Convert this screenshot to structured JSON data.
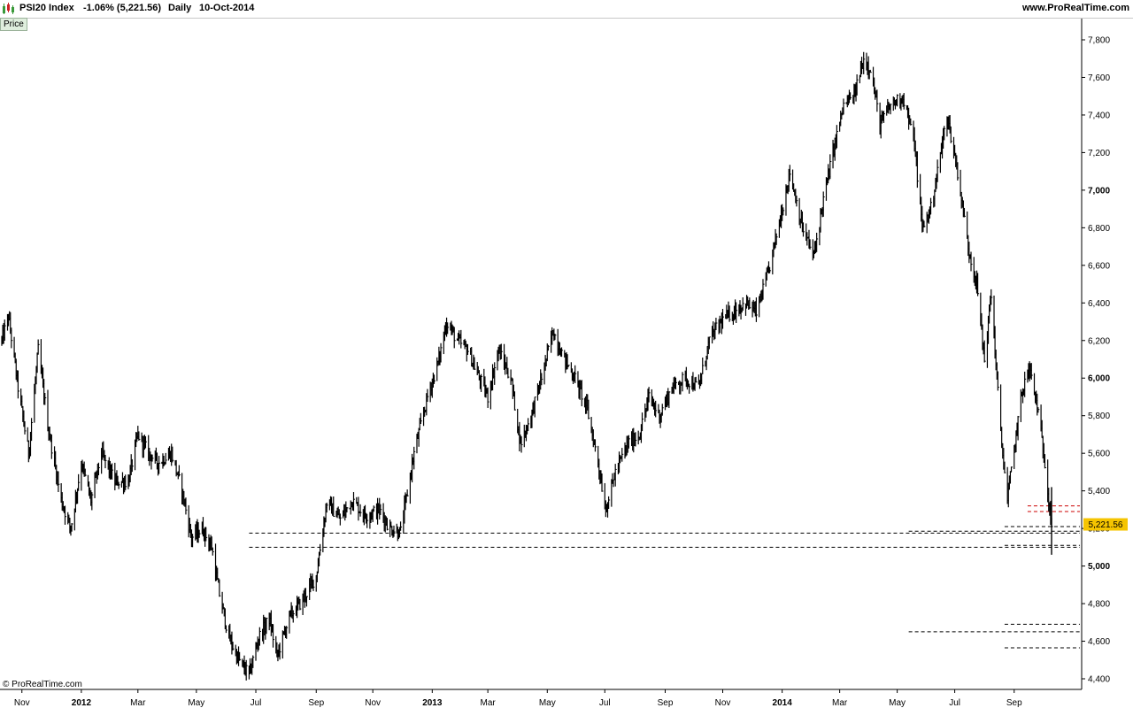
{
  "header": {
    "symbol": "PSI20 Index",
    "change": "-1.06% (5,221.56)",
    "period": "Daily",
    "date": "10-Oct-2014",
    "site": "www.ProRealTime.com"
  },
  "price_tab_label": "Price",
  "copyright": "© ProRealTime.com",
  "colors": {
    "bars": "#000000",
    "red_level": "#cc0000",
    "last_price_bg": "#f5c400",
    "tab_bg": "#dfeedd"
  },
  "chart_data": {
    "type": "ohlc",
    "title": "PSI20 Index",
    "xlabel": "",
    "ylabel": "",
    "ylim": [
      4350,
      7900
    ],
    "y_ticks": [
      {
        "value": 4400,
        "label": "4,400"
      },
      {
        "value": 4600,
        "label": "4,600"
      },
      {
        "value": 4800,
        "label": "4,800"
      },
      {
        "value": 5000,
        "label": "5,000"
      },
      {
        "value": 5200,
        "label": "5,200"
      },
      {
        "value": 5400,
        "label": "5,400"
      },
      {
        "value": 5600,
        "label": "5,600"
      },
      {
        "value": 5800,
        "label": "5,800"
      },
      {
        "value": 6000,
        "label": "6,000"
      },
      {
        "value": 6200,
        "label": "6,200"
      },
      {
        "value": 6400,
        "label": "6,400"
      },
      {
        "value": 6600,
        "label": "6,600"
      },
      {
        "value": 6800,
        "label": "6,800"
      },
      {
        "value": 7000,
        "label": "7,000"
      },
      {
        "value": 7200,
        "label": "7,200"
      },
      {
        "value": 7400,
        "label": "7,400"
      },
      {
        "value": 7600,
        "label": "7,600"
      },
      {
        "value": 7800,
        "label": "7,800"
      }
    ],
    "bold_y_ticks": [
      5000,
      6000,
      7000
    ],
    "x_range": [
      "2011-10-11",
      "2014-10-10"
    ],
    "x_ticks": [
      {
        "label": "Nov",
        "date": "2011-11-01",
        "bold": false
      },
      {
        "label": "2012",
        "date": "2012-01-02",
        "bold": true
      },
      {
        "label": "Mar",
        "date": "2012-03-01",
        "bold": false
      },
      {
        "label": "May",
        "date": "2012-05-01",
        "bold": false
      },
      {
        "label": "Jul",
        "date": "2012-07-02",
        "bold": false
      },
      {
        "label": "Sep",
        "date": "2012-09-03",
        "bold": false
      },
      {
        "label": "Nov",
        "date": "2012-11-01",
        "bold": false
      },
      {
        "label": "2013",
        "date": "2013-01-02",
        "bold": true
      },
      {
        "label": "Mar",
        "date": "2013-03-01",
        "bold": false
      },
      {
        "label": "May",
        "date": "2013-05-02",
        "bold": false
      },
      {
        "label": "Jul",
        "date": "2013-07-01",
        "bold": false
      },
      {
        "label": "Sep",
        "date": "2013-09-02",
        "bold": false
      },
      {
        "label": "Nov",
        "date": "2013-11-01",
        "bold": false
      },
      {
        "label": "2014",
        "date": "2014-01-02",
        "bold": true
      },
      {
        "label": "Mar",
        "date": "2014-03-03",
        "bold": false
      },
      {
        "label": "May",
        "date": "2014-05-02",
        "bold": false
      },
      {
        "label": "Jul",
        "date": "2014-07-01",
        "bold": false
      },
      {
        "label": "Sep",
        "date": "2014-09-01",
        "bold": false
      }
    ],
    "path": [
      [
        "2011-10-11",
        6200
      ],
      [
        "2011-10-18",
        6330
      ],
      [
        "2011-10-28",
        5950
      ],
      [
        "2011-11-08",
        5600
      ],
      [
        "2011-11-18",
        6150
      ],
      [
        "2011-11-28",
        5750
      ],
      [
        "2011-12-12",
        5350
      ],
      [
        "2011-12-22",
        5200
      ],
      [
        "2012-01-02",
        5550
      ],
      [
        "2012-01-12",
        5350
      ],
      [
        "2012-01-23",
        5600
      ],
      [
        "2012-02-06",
        5450
      ],
      [
        "2012-02-20",
        5450
      ],
      [
        "2012-03-01",
        5700
      ],
      [
        "2012-03-12",
        5600
      ],
      [
        "2012-03-22",
        5550
      ],
      [
        "2012-04-05",
        5600
      ],
      [
        "2012-04-16",
        5400
      ],
      [
        "2012-04-26",
        5150
      ],
      [
        "2012-05-07",
        5200
      ],
      [
        "2012-05-17",
        5100
      ],
      [
        "2012-05-25",
        4850
      ],
      [
        "2012-06-04",
        4620
      ],
      [
        "2012-06-14",
        4500
      ],
      [
        "2012-06-25",
        4420
      ],
      [
        "2012-07-05",
        4620
      ],
      [
        "2012-07-16",
        4720
      ],
      [
        "2012-07-24",
        4520
      ],
      [
        "2012-08-06",
        4730
      ],
      [
        "2012-08-20",
        4820
      ],
      [
        "2012-09-03",
        4950
      ],
      [
        "2012-09-14",
        5340
      ],
      [
        "2012-09-28",
        5250
      ],
      [
        "2012-10-10",
        5350
      ],
      [
        "2012-10-24",
        5270
      ],
      [
        "2012-11-08",
        5300
      ],
      [
        "2012-11-19",
        5200
      ],
      [
        "2012-11-30",
        5180
      ],
      [
        "2012-12-14",
        5600
      ],
      [
        "2012-12-28",
        5900
      ],
      [
        "2013-01-09",
        6100
      ],
      [
        "2013-01-17",
        6300
      ],
      [
        "2013-01-28",
        6200
      ],
      [
        "2013-02-08",
        6150
      ],
      [
        "2013-02-20",
        6000
      ],
      [
        "2013-03-01",
        5900
      ],
      [
        "2013-03-12",
        6150
      ],
      [
        "2013-03-25",
        6000
      ],
      [
        "2013-04-04",
        5650
      ],
      [
        "2013-04-15",
        5800
      ],
      [
        "2013-04-26",
        6000
      ],
      [
        "2013-05-08",
        6250
      ],
      [
        "2013-05-20",
        6100
      ],
      [
        "2013-05-31",
        6000
      ],
      [
        "2013-06-12",
        5850
      ],
      [
        "2013-06-24",
        5550
      ],
      [
        "2013-07-02",
        5300
      ],
      [
        "2013-07-12",
        5500
      ],
      [
        "2013-07-25",
        5650
      ],
      [
        "2013-08-06",
        5700
      ],
      [
        "2013-08-16",
        5900
      ],
      [
        "2013-08-27",
        5800
      ],
      [
        "2013-09-09",
        5950
      ],
      [
        "2013-09-23",
        6000
      ],
      [
        "2013-10-07",
        5950
      ],
      [
        "2013-10-18",
        6200
      ],
      [
        "2013-10-30",
        6300
      ],
      [
        "2013-11-11",
        6350
      ],
      [
        "2013-11-25",
        6400
      ],
      [
        "2013-12-06",
        6350
      ],
      [
        "2013-12-18",
        6550
      ],
      [
        "2014-01-02",
        6900
      ],
      [
        "2014-01-10",
        7100
      ],
      [
        "2014-01-23",
        6800
      ],
      [
        "2014-02-04",
        6650
      ],
      [
        "2014-02-14",
        6950
      ],
      [
        "2014-02-26",
        7250
      ],
      [
        "2014-03-07",
        7450
      ],
      [
        "2014-03-18",
        7500
      ],
      [
        "2014-03-28",
        7700
      ],
      [
        "2014-04-04",
        7650
      ],
      [
        "2014-04-14",
        7350
      ],
      [
        "2014-04-25",
        7450
      ],
      [
        "2014-05-08",
        7500
      ],
      [
        "2014-05-20",
        7250
      ],
      [
        "2014-05-28",
        6800
      ],
      [
        "2014-06-06",
        6900
      ],
      [
        "2014-06-13",
        7100
      ],
      [
        "2014-06-23",
        7400
      ],
      [
        "2014-07-04",
        7100
      ],
      [
        "2014-07-15",
        6700
      ],
      [
        "2014-07-24",
        6500
      ],
      [
        "2014-08-01",
        6100
      ],
      [
        "2014-08-08",
        6450
      ],
      [
        "2014-08-18",
        5700
      ],
      [
        "2014-08-25",
        5350
      ],
      [
        "2014-09-03",
        5700
      ],
      [
        "2014-09-10",
        5950
      ],
      [
        "2014-09-17",
        6050
      ],
      [
        "2014-09-25",
        5850
      ],
      [
        "2014-10-03",
        5550
      ],
      [
        "2014-10-10",
        5222
      ]
    ],
    "last_price": {
      "value": 5221.56,
      "label": "5,221.56"
    },
    "horizontal_levels": [
      {
        "y": 5175,
        "from": "2012-06-25",
        "to": "2014-10-10"
      },
      {
        "y": 5100,
        "from": "2012-06-25",
        "to": "2014-10-10"
      },
      {
        "y": 5185,
        "from": "2014-05-14",
        "to": "2014-10-10"
      },
      {
        "y": 5210,
        "from": "2014-08-22",
        "to": "2014-10-10"
      },
      {
        "y": 5110,
        "from": "2014-08-22",
        "to": "2014-10-10"
      },
      {
        "y": 4690,
        "from": "2014-08-22",
        "to": "2014-10-10"
      },
      {
        "y": 4650,
        "from": "2014-05-14",
        "to": "2014-10-10"
      },
      {
        "y": 4565,
        "from": "2014-08-22",
        "to": "2014-10-10"
      },
      {
        "y": 5320,
        "from": "2014-09-15",
        "to": "2014-10-10",
        "color": "red"
      },
      {
        "y": 5290,
        "from": "2014-09-15",
        "to": "2014-10-10",
        "color": "red"
      }
    ],
    "grid": false
  }
}
